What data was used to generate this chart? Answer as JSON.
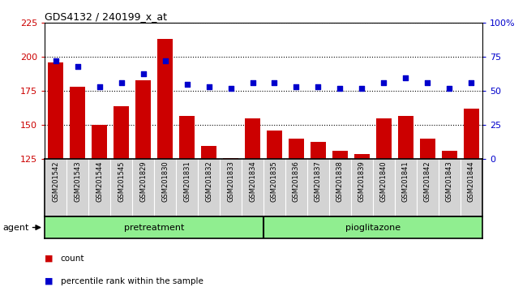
{
  "title": "GDS4132 / 240199_x_at",
  "categories": [
    "GSM201542",
    "GSM201543",
    "GSM201544",
    "GSM201545",
    "GSM201829",
    "GSM201830",
    "GSM201831",
    "GSM201832",
    "GSM201833",
    "GSM201834",
    "GSM201835",
    "GSM201836",
    "GSM201837",
    "GSM201838",
    "GSM201839",
    "GSM201840",
    "GSM201841",
    "GSM201842",
    "GSM201843",
    "GSM201844"
  ],
  "bar_values": [
    196,
    178,
    150,
    164,
    183,
    213,
    157,
    135,
    126,
    155,
    146,
    140,
    138,
    131,
    129,
    155,
    157,
    140,
    131,
    162
  ],
  "scatter_values": [
    72,
    68,
    53,
    56,
    63,
    72,
    55,
    53,
    52,
    56,
    56,
    53,
    53,
    52,
    52,
    56,
    60,
    56,
    52,
    56
  ],
  "bar_color": "#cc0000",
  "scatter_color": "#0000cc",
  "ylim_left": [
    125,
    225
  ],
  "ylim_right": [
    0,
    100
  ],
  "yticks_left": [
    125,
    150,
    175,
    200,
    225
  ],
  "yticks_right": [
    0,
    25,
    50,
    75,
    100
  ],
  "ytick_labels_right": [
    "0",
    "25",
    "50",
    "75",
    "100%"
  ],
  "n_pretreatment": 10,
  "n_pioglitazone": 10,
  "pretreatment_label": "pretreatment",
  "pioglitazone_label": "pioglitazone",
  "agent_label": "agent",
  "legend_count": "count",
  "legend_percentile": "percentile rank within the sample",
  "group_color": "#90ee90",
  "label_bg_color": "#d3d3d3",
  "tick_label_fontsize": 6.0,
  "title_fontsize": 9,
  "axis_label_fontsize": 8
}
